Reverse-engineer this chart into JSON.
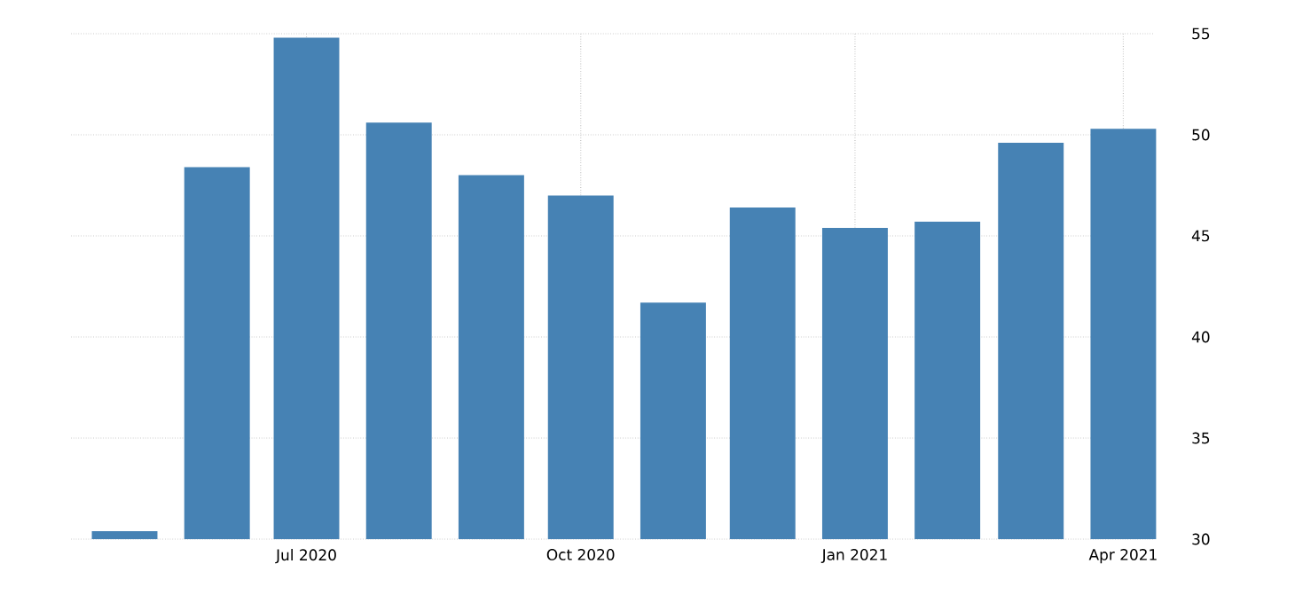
{
  "chart_data": {
    "type": "bar",
    "x": [
      "2020-05",
      "2020-06",
      "2020-07",
      "2020-08",
      "2020-09",
      "2020-10",
      "2020-11",
      "2020-12",
      "2021-01",
      "2021-02",
      "2021-03",
      "2021-04"
    ],
    "values": [
      30.4,
      48.4,
      54.8,
      50.6,
      48.0,
      47.0,
      41.7,
      46.4,
      45.4,
      45.7,
      49.6,
      50.3
    ],
    "color": "#4682b4",
    "xlim": [
      "2020-04-13",
      "2021-04-11"
    ],
    "xticks": [
      {
        "value": "2020-07",
        "label": "Jul 2020"
      },
      {
        "value": "2020-10",
        "label": "Oct 2020"
      },
      {
        "value": "2021-01",
        "label": "Jan 2021"
      },
      {
        "value": "2021-04",
        "label": "Apr 2021"
      }
    ],
    "ylim": [
      30,
      55
    ],
    "yticks": [
      30,
      35,
      40,
      45,
      50,
      55
    ],
    "grid": true
  }
}
